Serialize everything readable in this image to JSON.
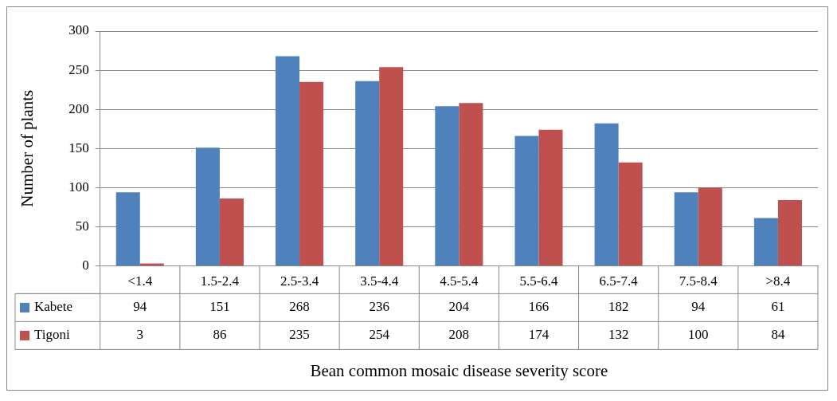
{
  "chart_data": {
    "type": "bar",
    "xlabel": "Bean common mosaic disease severity score",
    "ylabel": "Number of plants",
    "categories": [
      "<1.4",
      "1.5-2.4",
      "2.5-3.4",
      "3.5-4.4",
      "4.5-5.4",
      "5.5-6.4",
      "6.5-7.4",
      "7.5-8.4",
      ">8.4"
    ],
    "series": [
      {
        "name": "Kabete",
        "color": "#4f81bd",
        "values": [
          94,
          151,
          268,
          236,
          204,
          166,
          182,
          94,
          61
        ]
      },
      {
        "name": "Tigoni",
        "color": "#c0504d",
        "values": [
          3,
          86,
          235,
          254,
          208,
          174,
          132,
          100,
          84
        ]
      }
    ],
    "ylim": [
      0,
      300
    ],
    "yticks": [
      0,
      50,
      100,
      150,
      200,
      250,
      300
    ],
    "grid": "y",
    "data_labels": true,
    "legend": "bottom left"
  }
}
